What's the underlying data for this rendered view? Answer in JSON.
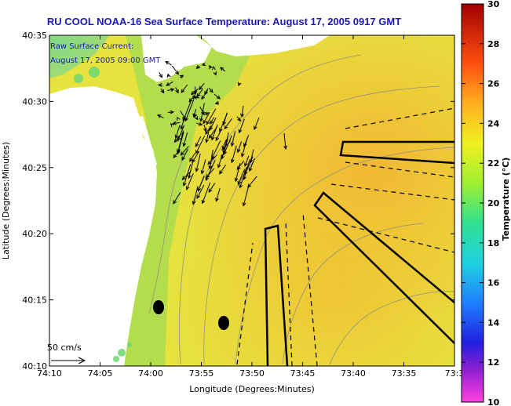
{
  "title": "RU COOL  NOAA-16  Sea Surface Temperature:  August 17, 2005 0917 GMT",
  "annotation": {
    "line1": "Raw Surface Current:",
    "line2": "August 17, 2005 09:00 GMT"
  },
  "scale_label": "50 cm/s",
  "x_axis": {
    "label": "Longitude (Degrees:Minutes)",
    "ticks": [
      "74:10",
      "74:05",
      "74:00",
      "73:55",
      "73:50",
      "73:45",
      "73:40",
      "73:35",
      "73:3"
    ]
  },
  "y_axis": {
    "label": "Latitude (Degrees:Minutes)",
    "ticks": [
      "40:35",
      "40:30",
      "40:25",
      "40:20",
      "40:15",
      "40:10"
    ]
  },
  "colorbar": {
    "label": "Temperature (°C)",
    "ticks": [
      "30",
      "28",
      "26",
      "24",
      "22",
      "20",
      "18",
      "16",
      "14",
      "12",
      "10"
    ],
    "range": [
      10,
      30
    ]
  },
  "colors": {
    "title": "#1a1ab4",
    "water": "#e8e040",
    "land": "#ffffff"
  }
}
